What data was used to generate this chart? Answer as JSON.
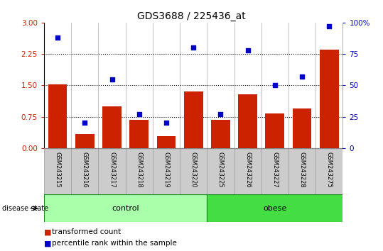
{
  "title": "GDS3688 / 225436_at",
  "samples": [
    "GSM243215",
    "GSM243216",
    "GSM243217",
    "GSM243218",
    "GSM243219",
    "GSM243220",
    "GSM243225",
    "GSM243226",
    "GSM243227",
    "GSM243228",
    "GSM243275"
  ],
  "transformed_count": [
    1.52,
    0.33,
    1.0,
    0.68,
    0.28,
    1.35,
    0.68,
    1.28,
    0.82,
    0.95,
    2.35
  ],
  "percentile_rank": [
    88,
    20,
    55,
    27,
    20,
    80,
    27,
    78,
    50,
    57,
    97
  ],
  "groups": [
    {
      "label": "control",
      "start": 0,
      "end": 5,
      "color": "#aaffaa"
    },
    {
      "label": "obese",
      "start": 6,
      "end": 10,
      "color": "#44dd44"
    }
  ],
  "bar_color": "#CC2200",
  "dot_color": "#0000CC",
  "ylim_left": [
    0,
    3
  ],
  "ylim_right": [
    0,
    100
  ],
  "yticks_left": [
    0,
    0.75,
    1.5,
    2.25,
    3
  ],
  "yticks_right": [
    0,
    25,
    50,
    75,
    100
  ],
  "hlines": [
    0.75,
    1.5,
    2.25
  ],
  "disease_state_label": "disease state",
  "legend_bar_label": "transformed count",
  "legend_dot_label": "percentile rank within the sample",
  "tick_label_color_left": "#CC2200",
  "tick_label_color_right": "#0000CC",
  "xticklabel_bg": "#cccccc"
}
